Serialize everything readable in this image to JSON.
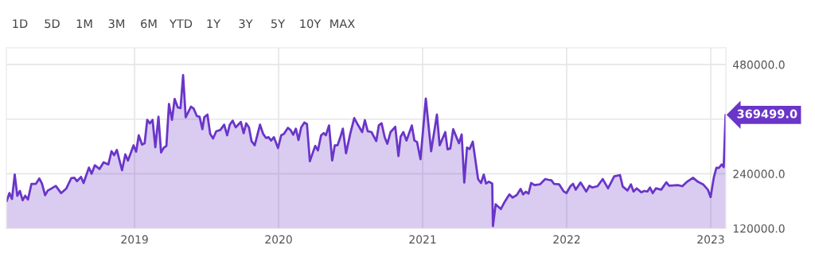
{
  "chart_data": {
    "type": "area",
    "x": [
      2018.112,
      2018.131,
      2018.149,
      2018.168,
      2018.186,
      2018.204,
      2018.223,
      2018.241,
      2018.26,
      2018.284,
      2018.315,
      2018.339,
      2018.357,
      2018.379,
      2018.398,
      2018.425,
      2018.453,
      2018.49,
      2018.527,
      2018.56,
      2018.582,
      2018.6,
      2018.628,
      2018.646,
      2018.683,
      2018.702,
      2018.724,
      2018.757,
      2018.785,
      2018.818,
      2018.84,
      2018.858,
      2018.877,
      2018.913,
      2018.936,
      2018.954,
      2018.993,
      2019.011,
      2019.029,
      2019.052,
      2019.07,
      2019.088,
      2019.107,
      2019.125,
      2019.144,
      2019.166,
      2019.184,
      2019.203,
      2019.221,
      2019.239,
      2019.26,
      2019.278,
      2019.3,
      2019.319,
      2019.337,
      2019.355,
      2019.392,
      2019.411,
      2019.433,
      2019.451,
      2019.471,
      2019.484,
      2019.506,
      2019.525,
      2019.545,
      2019.567,
      2019.595,
      2019.622,
      2019.643,
      2019.661,
      2019.681,
      2019.702,
      2019.738,
      2019.757,
      2019.775,
      2019.794,
      2019.812,
      2019.834,
      2019.871,
      2019.893,
      2019.912,
      2019.93,
      2019.948,
      2019.967,
      2019.996,
      2020.018,
      2020.037,
      2020.064,
      2020.083,
      2020.101,
      2020.12,
      2020.138,
      2020.157,
      2020.179,
      2020.197,
      2020.217,
      2020.236,
      2020.254,
      2020.273,
      2020.295,
      2020.313,
      2020.328,
      2020.35,
      2020.372,
      2020.39,
      2020.409,
      2020.427,
      2020.446,
      2020.468,
      2020.497,
      2020.525,
      2020.552,
      2020.58,
      2020.599,
      2020.619,
      2020.645,
      2020.678,
      2020.696,
      2020.715,
      2020.737,
      2020.755,
      2020.777,
      2020.81,
      2020.832,
      2020.847,
      2020.866,
      2020.888,
      2020.925,
      2020.943,
      2020.961,
      2020.985,
      2021.022,
      2021.059,
      2021.099,
      2021.118,
      2021.157,
      2021.173,
      2021.192,
      2021.212,
      2021.252,
      2021.271,
      2021.289,
      2021.308,
      2021.326,
      2021.348,
      2021.385,
      2021.405,
      2021.424,
      2021.44,
      2021.459,
      2021.483,
      2021.488,
      2021.507,
      2021.543,
      2021.565,
      2021.602,
      2021.624,
      2021.654,
      2021.68,
      2021.698,
      2021.716,
      2021.735,
      2021.753,
      2021.777,
      2021.814,
      2021.851,
      2021.875,
      2021.894,
      2021.912,
      2021.948,
      2021.98,
      2021.998,
      2022.026,
      2022.044,
      2022.063,
      2022.096,
      2022.136,
      2022.158,
      2022.177,
      2022.214,
      2022.25,
      2022.287,
      2022.33,
      2022.37,
      2022.389,
      2022.422,
      2022.446,
      2022.464,
      2022.486,
      2022.518,
      2022.538,
      2022.56,
      2022.578,
      2022.597,
      2022.619,
      2022.656,
      2022.692,
      2022.711,
      2022.772,
      2022.803,
      2022.836,
      2022.877,
      2022.91,
      2022.947,
      2022.98,
      2022.999,
      2023.021,
      2023.039,
      2023.057,
      2023.076,
      2023.09,
      2023.103
    ],
    "values": [
      180000,
      197500,
      184700,
      238300,
      191700,
      202200,
      181800,
      191700,
      183500,
      217900,
      217900,
      229600,
      218500,
      192900,
      203300,
      208000,
      213300,
      197500,
      208000,
      230200,
      231300,
      223700,
      233100,
      219700,
      253500,
      240100,
      258700,
      250600,
      265100,
      260500,
      289600,
      280900,
      292500,
      247700,
      282600,
      269200,
      302500,
      288500,
      324600,
      304200,
      307100,
      358400,
      350800,
      358400,
      298400,
      365400,
      286700,
      297200,
      301300,
      393400,
      358400,
      404500,
      385800,
      384100,
      457000,
      364300,
      387600,
      382900,
      366600,
      365400,
      338000,
      364300,
      370100,
      327500,
      317600,
      333400,
      336300,
      347900,
      324600,
      347900,
      356700,
      342100,
      353800,
      329300,
      350800,
      342100,
      311800,
      302500,
      347900,
      327500,
      318800,
      320500,
      313000,
      320500,
      296600,
      324600,
      327500,
      340900,
      336300,
      325800,
      339200,
      314100,
      342100,
      352600,
      349100,
      267500,
      285000,
      301300,
      291400,
      324600,
      329300,
      324600,
      346200,
      269200,
      302500,
      302500,
      318800,
      339200,
      285000,
      327500,
      362500,
      346800,
      331600,
      357800,
      333400,
      331600,
      311800,
      346800,
      350800,
      319900,
      306000,
      331600,
      343300,
      279100,
      321700,
      331600,
      313000,
      346200,
      313000,
      310000,
      272100,
      405100,
      289600,
      370100,
      302500,
      331600,
      293700,
      295500,
      338000,
      307100,
      326400,
      220800,
      297800,
      294300,
      310600,
      228400,
      219700,
      238300,
      218500,
      222600,
      218500,
      125200,
      173000,
      162500,
      175900,
      194600,
      187600,
      193400,
      206800,
      194600,
      200400,
      196400,
      219700,
      215000,
      216800,
      228400,
      226700,
      225500,
      217900,
      216800,
      201000,
      197500,
      212700,
      217900,
      205100,
      220800,
      201000,
      213800,
      209800,
      212700,
      228400,
      208000,
      234200,
      237200,
      212100,
      203300,
      216800,
      201000,
      208000,
      199300,
      202200,
      201000,
      209800,
      197500,
      208000,
      205100,
      221400,
      213800,
      215000,
      212700,
      222600,
      231300,
      222600,
      216800,
      205100,
      188800,
      231300,
      252900,
      252900,
      260500,
      254600,
      369499
    ],
    "color": "#6a35c9",
    "xlim": [
      2018.11,
      2023.105
    ],
    "xticks": [
      2019,
      2020,
      2021,
      2022,
      2023
    ],
    "ylim": [
      120000,
      517000
    ],
    "yticks": [
      {
        "value": 120000,
        "label": "120000.0"
      },
      {
        "value": 240000,
        "label": "240000.0"
      },
      {
        "value": 360000,
        "label": null
      },
      {
        "value": 480000,
        "label": "480000.0"
      }
    ],
    "grid": true,
    "annotations": [
      "1D",
      "5D",
      "1M",
      "3M",
      "6M",
      "YTD",
      "1Y",
      "3Y",
      "5Y",
      "10Y",
      "MAX",
      {
        "text": "369499.0",
        "x": 2023.103,
        "y": 369499
      }
    ]
  }
}
